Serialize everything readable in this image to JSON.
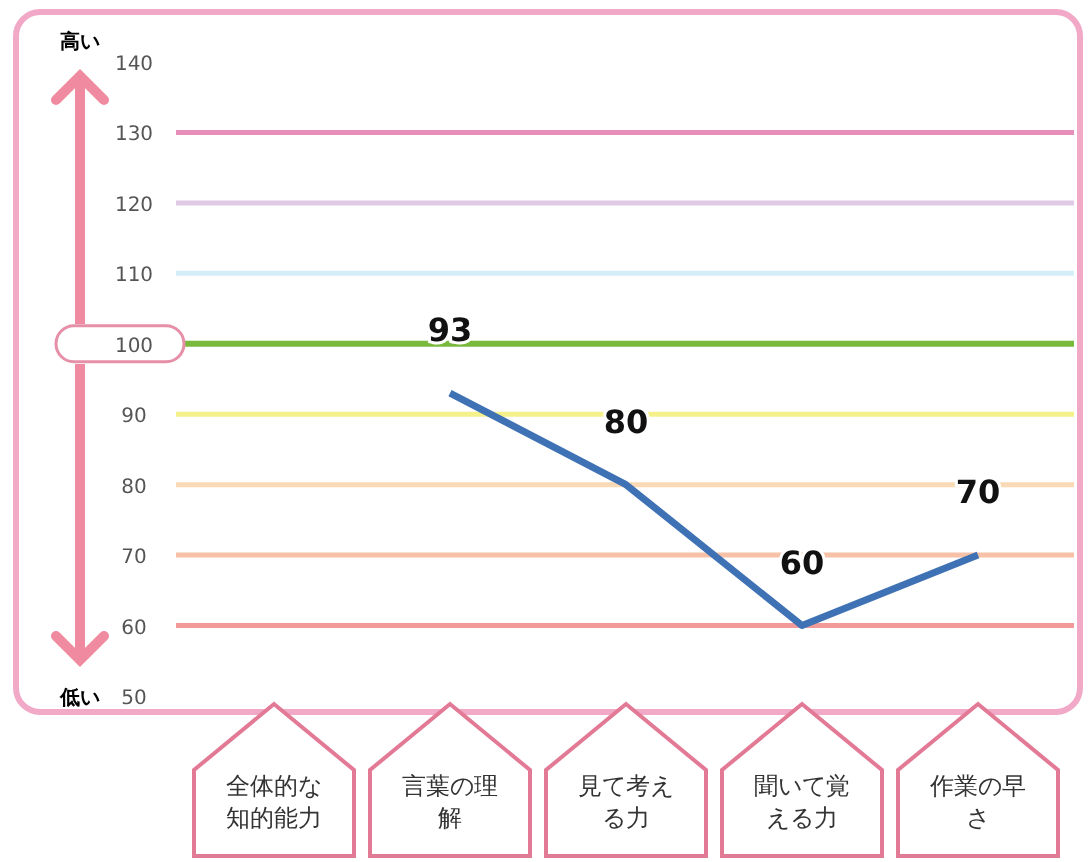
{
  "chart_data": {
    "type": "line",
    "categories": [
      "全体的な知的能力",
      "言葉の理解",
      "見て考える力",
      "聞いて覚える力",
      "作業の早さ"
    ],
    "series": [
      {
        "color": "#3f72b5",
        "values": [
          null,
          93,
          80,
          60,
          70
        ]
      }
    ],
    "ylim": [
      50,
      140
    ],
    "yticks": [
      50,
      60,
      70,
      80,
      90,
      100,
      110,
      120,
      130,
      140
    ],
    "data_labels": true,
    "marker": "none",
    "line_style": "solid",
    "grid": false,
    "annotations": [
      "高い",
      "低い"
    ],
    "ref_lines": [
      {
        "axis": "y",
        "value": 130,
        "color": "#e58fba"
      },
      {
        "axis": "y",
        "value": 120,
        "color": "#e0cbe6"
      },
      {
        "axis": "y",
        "value": 110,
        "color": "#d4eef7"
      },
      {
        "axis": "y",
        "value": 100,
        "color": "#79b93b"
      },
      {
        "axis": "y",
        "value": 90,
        "color": "#f4f08a"
      },
      {
        "axis": "y",
        "value": 80,
        "color": "#fad9b5"
      },
      {
        "axis": "y",
        "value": 70,
        "color": "#f6c1a6"
      },
      {
        "axis": "y",
        "value": 60,
        "color": "#f29a9a"
      }
    ]
  }
}
